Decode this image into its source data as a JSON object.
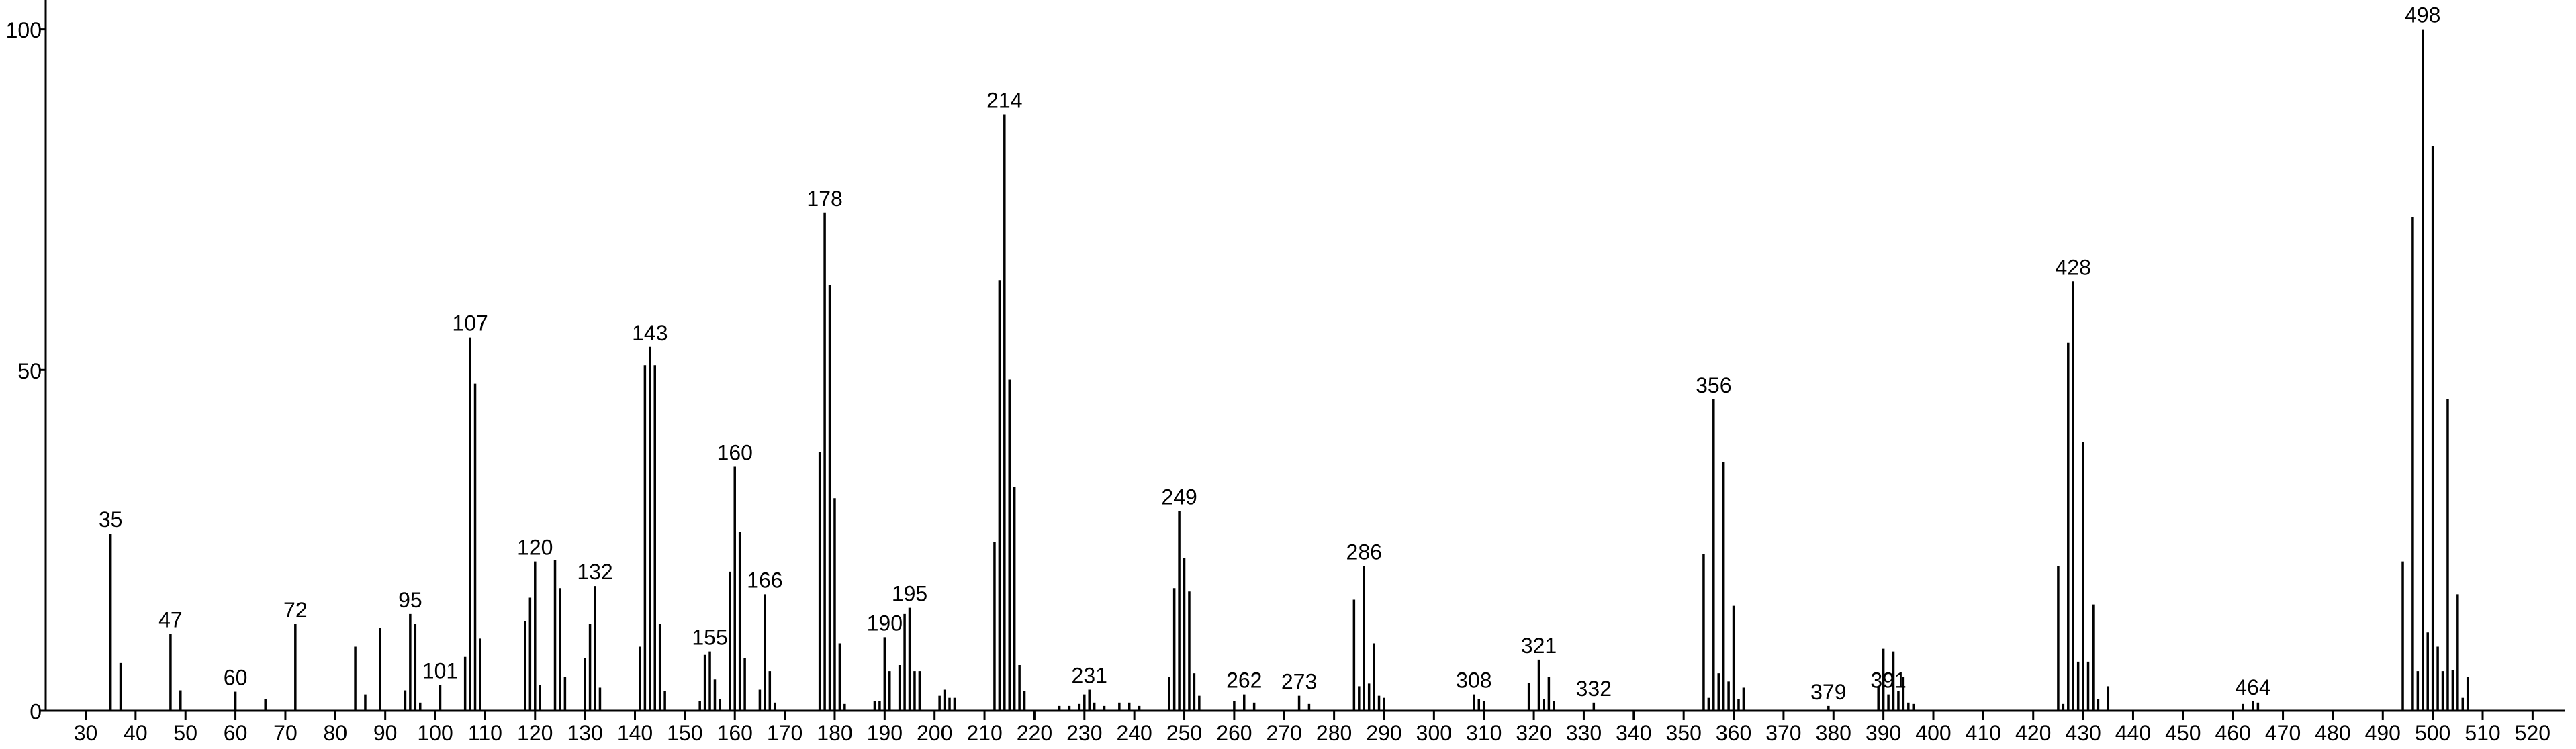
{
  "chart_data": {
    "type": "bar",
    "color": "#000000",
    "x": [
      35,
      37,
      47,
      49,
      60,
      66,
      72,
      84,
      86,
      89,
      94,
      95,
      96,
      97,
      101,
      106,
      107,
      108,
      109,
      118,
      119,
      120,
      121,
      124,
      125,
      126,
      130,
      131,
      132,
      133,
      141,
      142,
      143,
      144,
      145,
      146,
      153,
      154,
      155,
      156,
      157,
      159,
      160,
      161,
      162,
      165,
      166,
      167,
      168,
      177,
      178,
      179,
      180,
      181,
      182,
      188,
      189,
      190,
      191,
      193,
      194,
      195,
      196,
      197,
      201,
      202,
      203,
      204,
      212,
      213,
      214,
      215,
      216,
      217,
      218,
      225,
      227,
      229,
      230,
      231,
      232,
      234,
      237,
      239,
      241,
      247,
      248,
      249,
      250,
      251,
      252,
      253,
      260,
      262,
      264,
      273,
      275,
      284,
      285,
      286,
      287,
      288,
      289,
      290,
      308,
      309,
      310,
      319,
      321,
      322,
      323,
      324,
      332,
      354,
      355,
      356,
      357,
      358,
      359,
      360,
      361,
      362,
      379,
      389,
      390,
      391,
      392,
      393,
      394,
      395,
      396,
      425,
      426,
      427,
      428,
      429,
      430,
      431,
      432,
      433,
      435,
      462,
      464,
      465,
      494,
      496,
      497,
      498,
      499,
      500,
      501,
      502,
      503,
      504,
      505,
      506,
      507
    ],
    "values": [
      26,
      7,
      11.3,
      3,
      2.8,
      1.7,
      12.7,
      9.4,
      2.4,
      12.2,
      3,
      14.2,
      12.7,
      1.2,
      3.8,
      7.9,
      54.8,
      48,
      10.6,
      13.2,
      16.6,
      21.9,
      3.8,
      22.1,
      18,
      5,
      7.7,
      12.7,
      18.3,
      3.4,
      9.4,
      50.7,
      53.4,
      50.7,
      12.7,
      2.9,
      1.4,
      8.2,
      8.7,
      4.6,
      1.7,
      20.4,
      35.8,
      26.2,
      7.7,
      3.1,
      17.1,
      5.8,
      1.2,
      38,
      73.1,
      62.5,
      31.2,
      9.9,
      1,
      1.4,
      1.4,
      10.8,
      5.8,
      6.7,
      14.2,
      15.1,
      5.8,
      5.8,
      2.2,
      3.1,
      1.9,
      1.9,
      24.8,
      63.2,
      87.5,
      48.6,
      32.9,
      6.7,
      2.9,
      0.7,
      0.7,
      1,
      2.4,
      3.1,
      1.2,
      0.7,
      1.2,
      1.2,
      0.7,
      5,
      18,
      29.3,
      22.4,
      17.5,
      5.5,
      2.2,
      1.4,
      2.4,
      1.2,
      2.2,
      1,
      16.3,
      3.6,
      21.2,
      4,
      9.9,
      2.2,
      1.9,
      2.4,
      1.7,
      1.4,
      4.1,
      7.5,
      1.7,
      5,
      1.4,
      1.2,
      23,
      1.9,
      45.7,
      5.5,
      36.5,
      4.3,
      15.4,
      1.7,
      3.4,
      0.7,
      3.6,
      9.1,
      2.4,
      8.7,
      2.9,
      5,
      1.2,
      1,
      21.2,
      1,
      54,
      63,
      7.2,
      39.4,
      7.2,
      15.6,
      1.7,
      3.6,
      1,
      1.4,
      1.2,
      21.9,
      72.4,
      5.8,
      100,
      11.5,
      82.9,
      9.4,
      5.8,
      45.7,
      6,
      17.1,
      1.9,
      5
    ],
    "peak_labels": [
      35,
      47,
      60,
      72,
      95,
      101,
      107,
      120,
      132,
      143,
      155,
      160,
      166,
      178,
      190,
      195,
      214,
      231,
      249,
      262,
      273,
      286,
      308,
      321,
      332,
      356,
      379,
      391,
      428,
      464,
      498
    ],
    "xlim": [
      22,
      526
    ],
    "xticks": [
      30,
      40,
      50,
      60,
      70,
      80,
      90,
      100,
      110,
      120,
      130,
      140,
      150,
      160,
      170,
      180,
      190,
      200,
      210,
      220,
      230,
      240,
      250,
      260,
      270,
      280,
      290,
      300,
      310,
      320,
      330,
      340,
      350,
      360,
      370,
      380,
      390,
      400,
      410,
      420,
      430,
      440,
      450,
      460,
      470,
      480,
      490,
      500,
      510,
      520
    ],
    "ylim": [
      0,
      104
    ],
    "yticks": [
      0,
      50,
      100
    ]
  }
}
